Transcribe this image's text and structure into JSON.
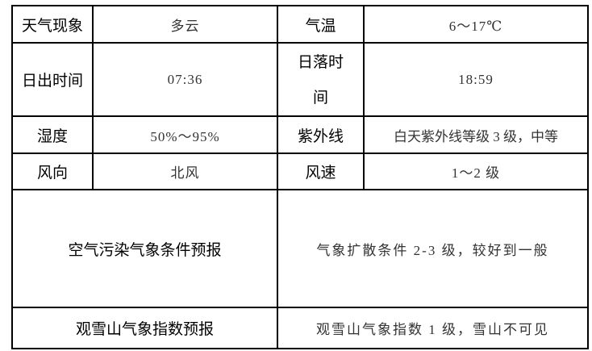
{
  "rows": [
    {
      "label1": "天气现象",
      "value1": "多云",
      "label2": "气温",
      "value2": "6～17℃"
    },
    {
      "label1": "日出时间",
      "value1": "07:36",
      "label2": "日落时间",
      "value2": "18:59"
    },
    {
      "label1": "湿度",
      "value1": "50%～95%",
      "label2": "紫外线",
      "value2": "白天紫外线等级 3 级，中等"
    },
    {
      "label1": "风向",
      "value1": "北风",
      "label2": "风速",
      "value2": "1～2 级"
    }
  ],
  "wide_rows": [
    {
      "label": "空气污染气象条件预报",
      "value": "气象扩散条件 2-3 级，较好到一般"
    },
    {
      "label": "观雪山气象指数预报",
      "value": "观雪山气象指数 1 级，雪山不可见"
    }
  ]
}
